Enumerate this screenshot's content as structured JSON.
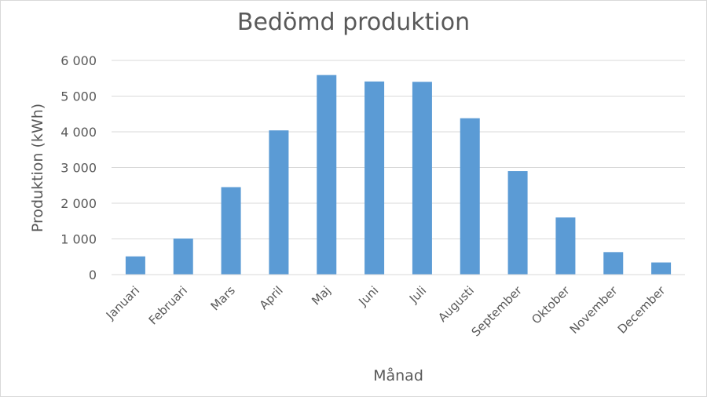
{
  "chart_data": {
    "type": "bar",
    "title": "Bedömd produktion",
    "xlabel": "Månad",
    "ylabel": "Produktion (kWh)",
    "categories": [
      "Januari",
      "Februari",
      "Mars",
      "April",
      "Maj",
      "Juni",
      "Juli",
      "Augusti",
      "September",
      "Oktober",
      "November",
      "December"
    ],
    "series": [
      {
        "values": [
          510,
          1010,
          2450,
          4040,
          5590,
          5410,
          5400,
          4380,
          2900,
          1600,
          630,
          340
        ],
        "color": "#5b9bd5"
      }
    ],
    "ylim": [
      0,
      6000
    ],
    "yticks": [
      0,
      1000,
      2000,
      3000,
      4000,
      5000,
      6000
    ],
    "ytick_labels": [
      "0",
      "1 000",
      "2 000",
      "3 000",
      "4 000",
      "5 000",
      "6 000"
    ],
    "grid": true,
    "gridline_color": "#d9d9d9",
    "legend": "none"
  }
}
